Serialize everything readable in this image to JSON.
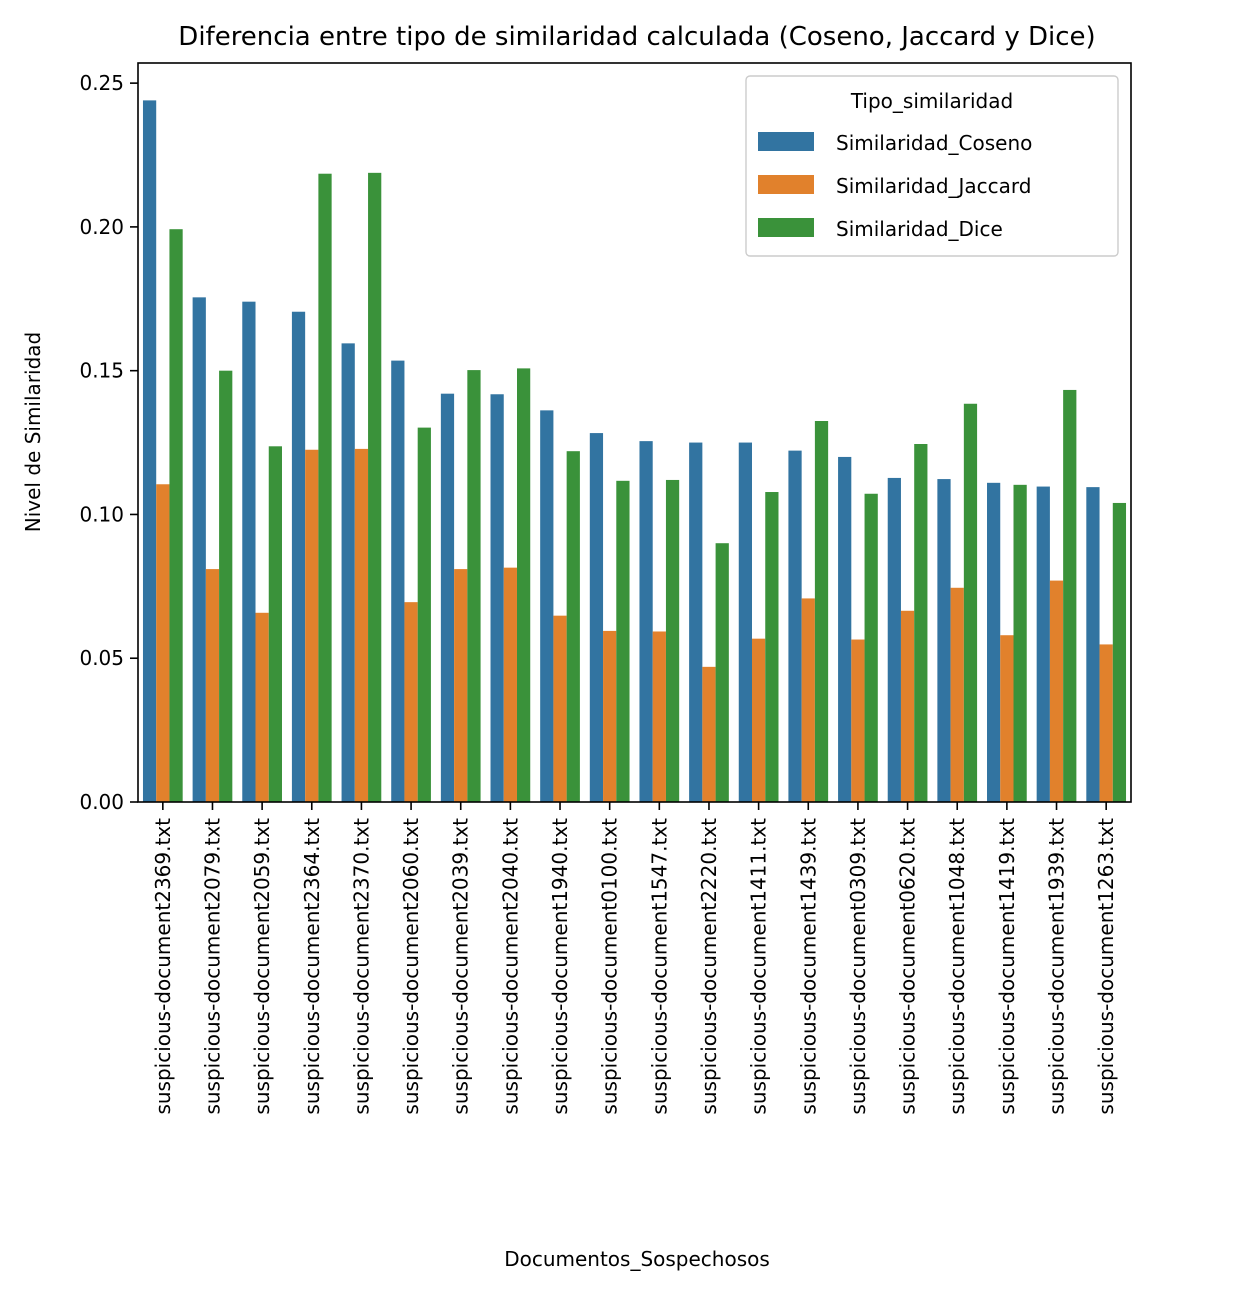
{
  "chart_data": {
    "type": "bar",
    "title": "Diferencia entre tipo de similaridad calculada (Coseno, Jaccard y Dice)",
    "xlabel": "Documentos_Sospechosos",
    "ylabel": "Nivel de Similaridad",
    "ylim": [
      0,
      0.257
    ],
    "yticks": [
      0.0,
      0.05,
      0.1,
      0.15,
      0.2,
      0.25
    ],
    "ytick_labels": [
      "0.00",
      "0.05",
      "0.10",
      "0.15",
      "0.20",
      "0.25"
    ],
    "grid": false,
    "legend": {
      "title": "Tipo_similaridad",
      "position": "top-right"
    },
    "categories": [
      "suspicious-document2369.txt",
      "suspicious-document2079.txt",
      "suspicious-document2059.txt",
      "suspicious-document2364.txt",
      "suspicious-document2370.txt",
      "suspicious-document2060.txt",
      "suspicious-document2039.txt",
      "suspicious-document2040.txt",
      "suspicious-document1940.txt",
      "suspicious-document0100.txt",
      "suspicious-document1547.txt",
      "suspicious-document2220.txt",
      "suspicious-document1411.txt",
      "suspicious-document1439.txt",
      "suspicious-document0309.txt",
      "suspicious-document0620.txt",
      "suspicious-document1048.txt",
      "suspicious-document1419.txt",
      "suspicious-document1939.txt",
      "suspicious-document1263.txt"
    ],
    "series": [
      {
        "name": "Similaridad_Coseno",
        "color": "#3274a1",
        "values": [
          0.244,
          0.1755,
          0.174,
          0.1705,
          0.1595,
          0.1535,
          0.142,
          0.1418,
          0.1362,
          0.1283,
          0.1255,
          0.125,
          0.125,
          0.1222,
          0.12,
          0.1127,
          0.1123,
          0.111,
          0.1097,
          0.1095
        ]
      },
      {
        "name": "Similaridad_Jaccard",
        "color": "#e1812c",
        "values": [
          0.1105,
          0.081,
          0.0658,
          0.1225,
          0.1228,
          0.0695,
          0.081,
          0.0815,
          0.0648,
          0.0595,
          0.0593,
          0.047,
          0.0568,
          0.0708,
          0.0565,
          0.0665,
          0.0745,
          0.058,
          0.077,
          0.0548
        ]
      },
      {
        "name": "Similaridad_Dice",
        "color": "#3a923a",
        "values": [
          0.1992,
          0.15,
          0.1237,
          0.2185,
          0.2188,
          0.1302,
          0.1502,
          0.1508,
          0.122,
          0.1117,
          0.112,
          0.09,
          0.1078,
          0.1325,
          0.1072,
          0.1245,
          0.1385,
          0.1103,
          0.1433,
          0.104
        ]
      }
    ]
  }
}
